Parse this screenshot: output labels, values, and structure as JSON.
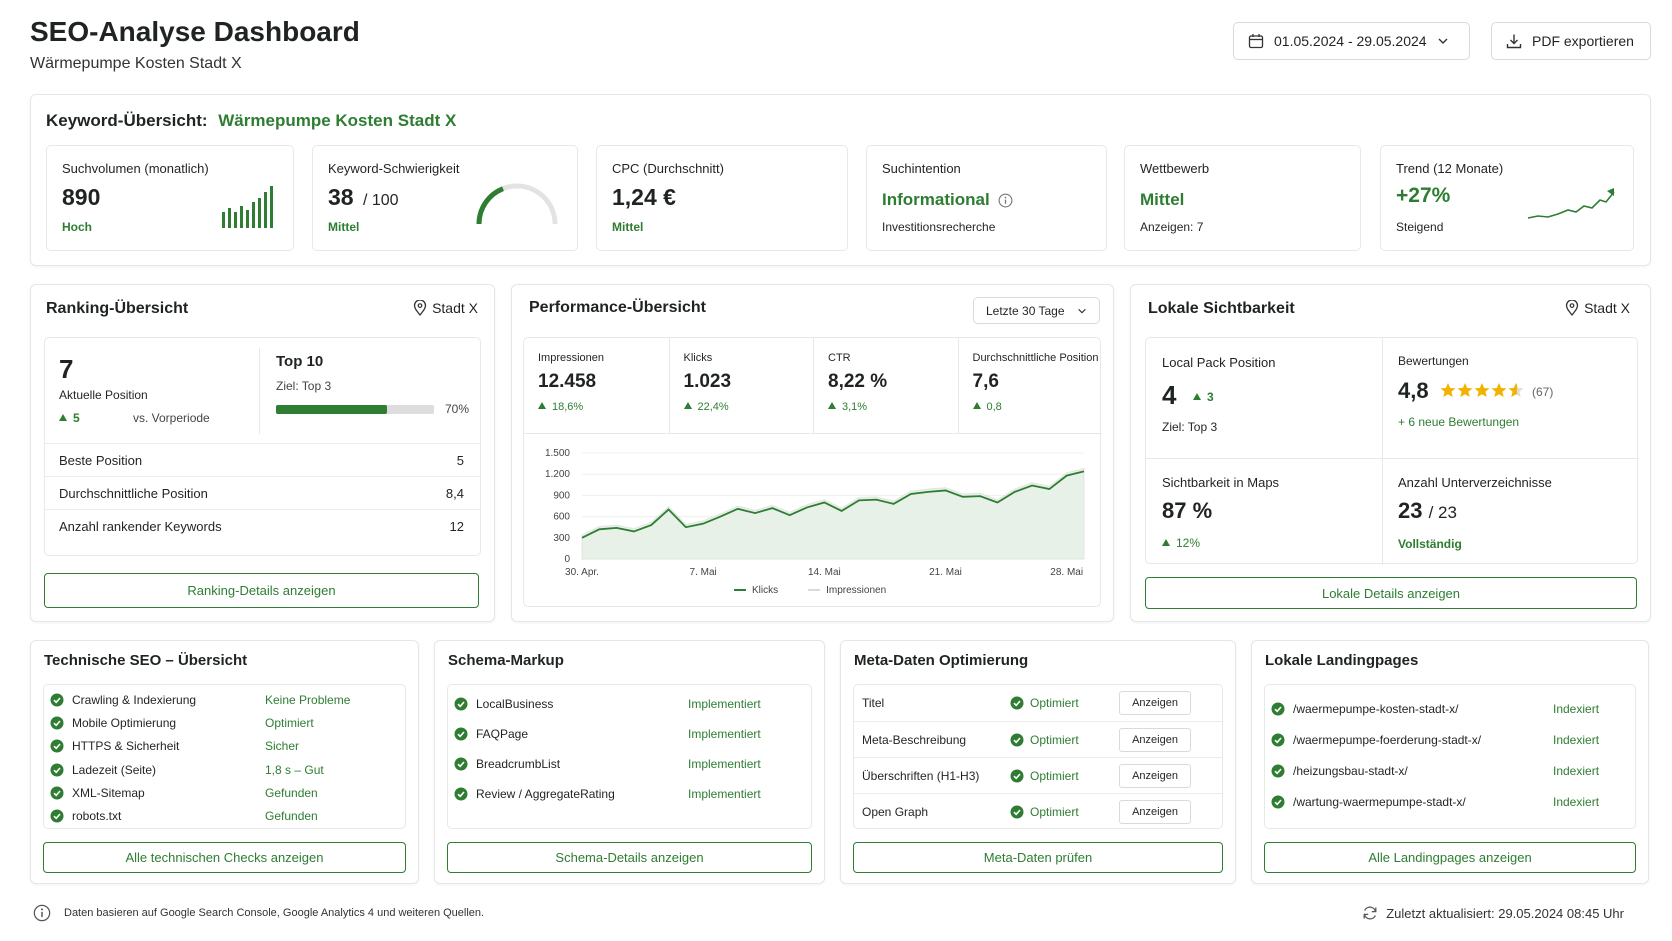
{
  "header": {
    "title": "SEO-Analyse Dashboard",
    "subtitle": "Wärmepumpe Kosten Stadt X",
    "date_range": "01.05.2024 - 29.05.2024",
    "export": "PDF exportieren"
  },
  "keyword": {
    "heading": "Keyword-Übersicht:",
    "keyword": "Wärmepumpe Kosten Stadt X",
    "cards": [
      {
        "label": "Suchvolumen (monatlich)",
        "value": "890",
        "note": "Hoch"
      },
      {
        "label": "Keyword-Schwierigkeit",
        "value": 38,
        "max": {
          "value": 100,
          "label": "/ 100"
        },
        "note": "Mittel"
      },
      {
        "label": "CPC (Durchschnitt)",
        "value": "1,24 €",
        "note": "Mittel"
      },
      {
        "label": "Suchintention",
        "value": "Informational",
        "note": "Investitionsrecherche"
      },
      {
        "label": "Wettbewerb",
        "value": "Mittel",
        "note": "Anzeigen: 7"
      },
      {
        "label": "Trend (12 Monate)",
        "value": "+27%",
        "note": "Steigend"
      }
    ]
  },
  "ranking": {
    "title": "Ranking-Übersicht",
    "location": "Stadt X",
    "position": "7",
    "position_label": "Aktuelle Position",
    "change": "5",
    "change_label": "vs. Vorperiode",
    "top": "Top 10",
    "goal": "Ziel: Top 3",
    "progress": {
      "value": 70,
      "label": "70%"
    },
    "rows": [
      [
        "Beste Position",
        "5"
      ],
      [
        "Durchschnittliche Position",
        "8,4"
      ],
      [
        "Anzahl rankender Keywords",
        "12"
      ]
    ],
    "button": "Ranking-Details anzeigen"
  },
  "performance": {
    "title": "Performance-Übersicht",
    "period": "Letzte 30 Tage",
    "kpis": [
      {
        "label": "Impressionen",
        "value": "12.458",
        "change": "18,6%"
      },
      {
        "label": "Klicks",
        "value": "1.023",
        "change": "22,4%"
      },
      {
        "label": "CTR",
        "value": "8,22 %",
        "change": "3,1%"
      },
      {
        "label": "Durchschnittliche Position",
        "value": "7,6",
        "change": "0,8"
      }
    ],
    "chart": {
      "type": "line",
      "categories": [
        "30. Apr.",
        null,
        null,
        null,
        null,
        null,
        null,
        "7. Mai",
        null,
        null,
        null,
        null,
        null,
        null,
        "14. Mai",
        null,
        null,
        null,
        null,
        null,
        null,
        "21. Mai",
        null,
        null,
        null,
        null,
        null,
        null,
        "28. Mai",
        null
      ],
      "series": [
        {
          "name": "Klicks",
          "color": "#2e7d32",
          "values": [
            300,
            420,
            440,
            390,
            480,
            700,
            450,
            500,
            600,
            710,
            650,
            720,
            620,
            730,
            800,
            680,
            830,
            840,
            780,
            920,
            950,
            970,
            880,
            890,
            800,
            950,
            1040,
            990,
            1180,
            1240
          ]
        },
        {
          "name": "Impressionen",
          "color": "#d5dcd5",
          "values": [
            340,
            460,
            480,
            430,
            520,
            740,
            490,
            540,
            640,
            750,
            690,
            760,
            660,
            770,
            840,
            720,
            870,
            880,
            820,
            960,
            990,
            1010,
            920,
            930,
            840,
            990,
            1080,
            1030,
            1220,
            1280
          ]
        }
      ],
      "ylim": [
        0,
        1500
      ],
      "yticks": [
        0,
        300,
        600,
        900,
        {
          "value": 1200,
          "label": "1.200"
        },
        {
          "value": 1500,
          "label": "1.500"
        }
      ],
      "grid": true
    }
  },
  "local": {
    "title": "Lokale Sichtbarkeit",
    "location": "Stadt X",
    "pack": {
      "label": "Local Pack Position",
      "value": "4",
      "change": "3",
      "note": "Ziel: Top 3"
    },
    "reviews": {
      "label": "Bewertungen",
      "value": "4,8",
      "count": "(67)",
      "note": "+ 6 neue Bewertungen"
    },
    "maps": {
      "label": "Sichtbarkeit in Maps",
      "value": "87 %",
      "change": "12%"
    },
    "directories": {
      "label": "Anzahl Unterverzeichnisse",
      "value": "23",
      "total": "/ 23",
      "note": "Vollständig"
    },
    "button": "Lokale Details anzeigen"
  },
  "technical": {
    "title": "Technische SEO – Übersicht",
    "rows": [
      [
        "Crawling & Indexierung",
        "Keine Probleme"
      ],
      [
        "Mobile Optimierung",
        "Optimiert"
      ],
      [
        "HTTPS & Sicherheit",
        "Sicher"
      ],
      [
        "Ladezeit (Seite)",
        "1,8 s – Gut"
      ],
      [
        "XML-Sitemap",
        "Gefunden"
      ],
      [
        "robots.txt",
        "Gefunden"
      ]
    ],
    "button": "Alle technischen Checks anzeigen"
  },
  "schema": {
    "title": "Schema-Markup",
    "rows": [
      [
        "LocalBusiness",
        "Implementiert"
      ],
      [
        "FAQPage",
        "Implementiert"
      ],
      [
        "BreadcrumbList",
        "Implementiert"
      ],
      [
        "Review / AggregateRating",
        "Implementiert"
      ]
    ],
    "button": "Schema-Details anzeigen"
  },
  "meta": {
    "title": "Meta-Daten Optimierung",
    "rows": [
      [
        "Titel",
        "Optimiert",
        "Anzeigen"
      ],
      [
        "Meta-Beschreibung",
        "Optimiert",
        "Anzeigen"
      ],
      [
        "Überschriften (H1-H3)",
        "Optimiert",
        "Anzeigen"
      ],
      [
        "Open Graph",
        "Optimiert",
        "Anzeigen"
      ]
    ],
    "button": "Meta-Daten prüfen"
  },
  "landing": {
    "title": "Lokale Landingpages",
    "rows": [
      [
        "/waermepumpe-kosten-stadt-x/",
        "Indexiert"
      ],
      [
        "/waermepumpe-foerderung-stadt-x/",
        "Indexiert"
      ],
      [
        "/heizungsbau-stadt-x/",
        "Indexiert"
      ],
      [
        "/wartung-waermepumpe-stadt-x/",
        "Indexiert"
      ]
    ],
    "button": "Alle Landingpages anzeigen"
  },
  "footer": {
    "note": "Daten basieren auf Google Search Console, Google Analytics 4 und weiteren Quellen.",
    "updated": "Zuletzt aktualisiert: 29.05.2024 08:45 Uhr"
  }
}
